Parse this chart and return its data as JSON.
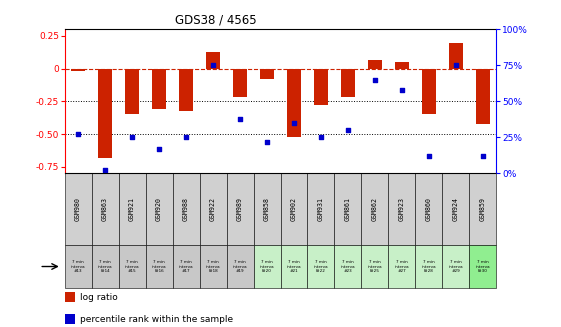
{
  "title": "GDS38 / 4565",
  "samples": [
    "GSM980",
    "GSM863",
    "GSM921",
    "GSM920",
    "GSM988",
    "GSM922",
    "GSM989",
    "GSM858",
    "GSM902",
    "GSM931",
    "GSM861",
    "GSM862",
    "GSM923",
    "GSM860",
    "GSM924",
    "GSM859"
  ],
  "time_labels": [
    "7 min\ninterva\n#13",
    "7 min\ninterva\nl#14",
    "7 min\ninterva\n#15",
    "7 min\ninterva\nl#16",
    "7 min\ninterva\n#17",
    "7 min\ninterva\nl#18",
    "7 min\ninterva\n#19",
    "7 min\ninterva\nl#20",
    "7 min\ninterva\n#21",
    "7 min\ninterva\nl#22",
    "7 min\ninterva\n#23",
    "7 min\ninterva\nl#25",
    "7 min\ninterva\n#27",
    "7 min\ninterva\nl#28",
    "7 min\ninterva\n#29",
    "7 min\ninterva\nl#30"
  ],
  "log_ratio": [
    -0.02,
    -0.68,
    -0.35,
    -0.31,
    -0.32,
    0.13,
    -0.22,
    -0.08,
    -0.52,
    -0.28,
    -0.22,
    0.07,
    0.05,
    -0.35,
    0.2,
    -0.42
  ],
  "percentile": [
    27,
    2,
    25,
    17,
    25,
    75,
    38,
    22,
    35,
    25,
    30,
    65,
    58,
    12,
    75,
    12
  ],
  "bar_color": "#cc2200",
  "dot_color": "#0000cc",
  "bg_color": "#ffffff",
  "ylim_left": [
    -0.8,
    0.3
  ],
  "ylim_right": [
    0,
    100
  ],
  "yticks_left": [
    0.25,
    0.0,
    -0.25,
    -0.5,
    -0.75
  ],
  "yticks_right": [
    0,
    25,
    50,
    75,
    100
  ],
  "sample_cell_color": "#d0d0d0",
  "time_bg_colors": [
    "#c8c8c8",
    "#c8c8c8",
    "#c8c8c8",
    "#c8c8c8",
    "#c8c8c8",
    "#c8c8c8",
    "#c8c8c8",
    "#c8f0c8",
    "#c8f0c8",
    "#c8f0c8",
    "#c8f0c8",
    "#c8f0c8",
    "#c8f0c8",
    "#c8f0c8",
    "#c8f0c8",
    "#90ee90"
  ],
  "legend_items": [
    {
      "color": "#cc2200",
      "label": "log ratio"
    },
    {
      "color": "#0000cc",
      "label": "percentile rank within the sample"
    }
  ]
}
